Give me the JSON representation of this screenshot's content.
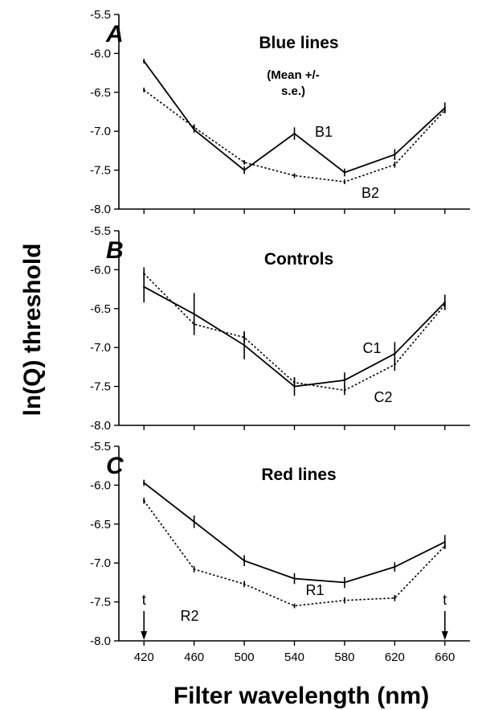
{
  "chart_data": {
    "type": "line",
    "xlabel": "Filter wavelength (nm)",
    "ylabel": "ln(Q) threshold",
    "x": [
      420,
      460,
      500,
      540,
      580,
      620,
      660
    ],
    "x_ticks": [
      "420",
      "460",
      "500",
      "540",
      "580",
      "620",
      "660"
    ],
    "xlim": [
      400,
      680
    ],
    "ylim": [
      -8.0,
      -5.5
    ],
    "y_ticks": [
      "-5.5",
      "-6.0",
      "-6.5",
      "-7.0",
      "-7.5",
      "-8.0"
    ],
    "grid": false,
    "panels": [
      {
        "letter": "A",
        "title": "Blue lines",
        "note": [
          "(Mean +/-",
          "s.e.)"
        ],
        "series": [
          {
            "name": "B1",
            "style": "solid",
            "values": [
              -6.1,
              -6.98,
              -7.5,
              -7.03,
              -7.53,
              -7.3,
              -6.7
            ],
            "err": [
              0.03,
              0.04,
              0.05,
              0.08,
              0.05,
              0.07,
              0.07
            ]
          },
          {
            "name": "B2",
            "style": "dotted",
            "values": [
              -6.47,
              -6.95,
              -7.4,
              -7.57,
              -7.65,
              -7.43,
              -6.73
            ],
            "err": [
              0.03,
              0.04,
              0.03,
              0.03,
              0.03,
              0.04,
              0.04
            ]
          }
        ]
      },
      {
        "letter": "B",
        "title": "Controls",
        "note": [],
        "series": [
          {
            "name": "C1",
            "style": "solid",
            "values": [
              -6.22,
              -6.57,
              -6.97,
              -7.5,
              -7.42,
              -7.08,
              -6.42
            ],
            "err": [
              0.2,
              0.27,
              0.18,
              0.12,
              0.1,
              0.15,
              0.1
            ]
          },
          {
            "name": "C2",
            "style": "dotted",
            "values": [
              -6.05,
              -6.7,
              -6.87,
              -7.45,
              -7.55,
              -7.22,
              -6.45
            ],
            "err": [
              0.08,
              0.06,
              0.06,
              0.06,
              0.06,
              0.08,
              0.06
            ]
          }
        ]
      },
      {
        "letter": "C",
        "title": "Red lines",
        "note": [],
        "series": [
          {
            "name": "R1",
            "style": "solid",
            "values": [
              -5.97,
              -6.47,
              -6.97,
              -7.2,
              -7.25,
              -7.05,
              -6.73
            ],
            "err": [
              0.04,
              0.08,
              0.07,
              0.07,
              0.07,
              0.06,
              0.09
            ]
          },
          {
            "name": "R2",
            "style": "dotted",
            "values": [
              -6.2,
              -7.08,
              -7.27,
              -7.55,
              -7.48,
              -7.45,
              -6.78
            ],
            "err": [
              0.04,
              0.04,
              0.04,
              0.03,
              0.04,
              0.04,
              0.04
            ]
          }
        ]
      }
    ],
    "annotations": [
      {
        "text": "t",
        "x": 420,
        "panel": "C"
      },
      {
        "text": "t",
        "x": 660,
        "panel": "C"
      }
    ]
  }
}
